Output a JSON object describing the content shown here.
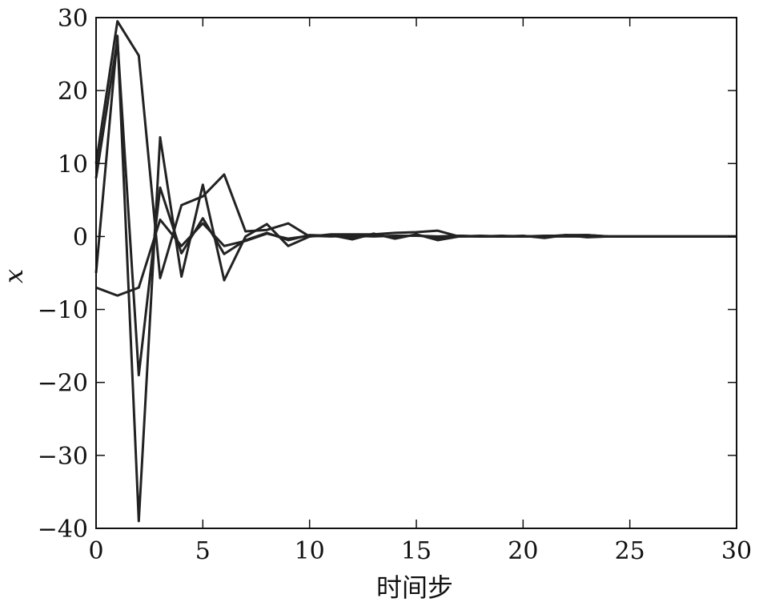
{
  "chart_data": {
    "type": "line",
    "title": "",
    "xlabel": "时间步",
    "ylabel": "x",
    "xlim": [
      0,
      30
    ],
    "ylim": [
      -40,
      30
    ],
    "xticks": [
      0,
      5,
      10,
      15,
      20,
      25,
      30
    ],
    "yticks": [
      -40,
      -30,
      -20,
      -10,
      0,
      10,
      20,
      30
    ],
    "ytick_labels": [
      "−40",
      "−30",
      "−20",
      "−10",
      "0",
      "10",
      "20",
      "30"
    ],
    "xtick_labels": [
      "0",
      "5",
      "10",
      "15",
      "20",
      "25",
      "30"
    ],
    "grid": false,
    "line_color": "#222222",
    "series": [
      {
        "x": [
          0,
          1,
          2,
          3,
          4,
          5,
          6,
          7,
          8,
          9,
          10,
          11,
          12,
          13,
          14,
          15,
          16,
          17,
          18,
          19,
          20,
          21,
          22,
          23,
          24,
          25,
          26,
          27,
          28,
          29,
          30
        ],
        "values": [
          10,
          29.5,
          24.8,
          -5.7,
          4.3,
          5.5,
          8.5,
          0.7,
          0.9,
          1.8,
          0,
          0.3,
          0.3,
          0.3,
          0.5,
          0.6,
          0.8,
          0,
          0,
          0,
          0,
          0,
          0,
          0,
          0,
          0,
          0,
          0,
          0,
          0,
          0
        ]
      },
      {
        "x": [
          0,
          1,
          2,
          3,
          4,
          5,
          6,
          7,
          8,
          9,
          10,
          11,
          12,
          13,
          14,
          15,
          16,
          17,
          18,
          19,
          20,
          21,
          22,
          23,
          24,
          25,
          26,
          27,
          28,
          29,
          30
        ],
        "values": [
          -5,
          27.5,
          -39,
          13.6,
          -5.5,
          7.1,
          -6,
          0,
          1.7,
          -1.3,
          0,
          0.2,
          -0.4,
          0.4,
          -0.3,
          0.3,
          -0.5,
          0,
          0.1,
          0,
          0.1,
          -0.2,
          0.2,
          -0.1,
          0,
          0,
          0,
          0,
          0,
          0,
          0
        ]
      },
      {
        "x": [
          0,
          1,
          2,
          3,
          4,
          5,
          6,
          7,
          8,
          9,
          10,
          11,
          12,
          13,
          14,
          15,
          16,
          17,
          18,
          19,
          20,
          21,
          22,
          23,
          24,
          25,
          26,
          27,
          28,
          29,
          30
        ],
        "values": [
          8,
          27,
          -19,
          6.7,
          -2.3,
          2.5,
          -2.4,
          -0.5,
          0.5,
          -0.5,
          0.2,
          0.1,
          -0.2,
          0.2,
          -0.1,
          0.2,
          -0.2,
          0.1,
          0,
          0.1,
          0,
          0.1,
          0.1,
          0.2,
          0,
          0,
          0,
          0,
          0,
          0,
          0
        ]
      },
      {
        "x": [
          0,
          1,
          2,
          3,
          4,
          5,
          6,
          7,
          8,
          9,
          10,
          11,
          12,
          13,
          14,
          15,
          16,
          17,
          18,
          19,
          20,
          21,
          22,
          23,
          24,
          25,
          26,
          27,
          28,
          29,
          30
        ],
        "values": [
          -7,
          -8.1,
          -7,
          2.3,
          -1.3,
          1.8,
          -1.3,
          -0.6,
          0.4,
          -0.3,
          0.1,
          0,
          0.1,
          0,
          0.1,
          0.1,
          0,
          0.1,
          0,
          0,
          0,
          0,
          0.2,
          0.2,
          0,
          0,
          0,
          0,
          0,
          0,
          0
        ]
      }
    ]
  }
}
